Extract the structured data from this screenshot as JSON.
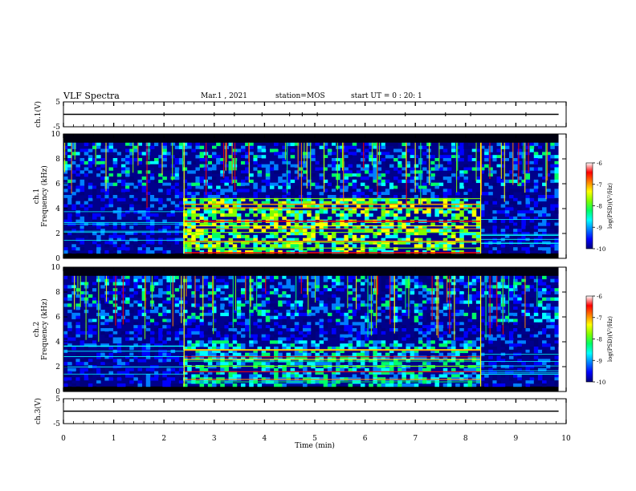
{
  "header": {
    "title": "VLF Spectra",
    "date": "Mar.1 , 2021",
    "station": "station=MOS",
    "start": "start UT =  0 : 20: 1"
  },
  "colors": {
    "spectrogram_colormap": [
      "#000000",
      "#00007a",
      "#0000ff",
      "#007fff",
      "#00ffff",
      "#00ff66",
      "#7fff00",
      "#ffff00",
      "#ff7f00",
      "#ff0000",
      "#ffffff"
    ],
    "axis": "#000000",
    "background": "#ffffff"
  },
  "chart_data": [
    {
      "type": "line",
      "panel": "ch1-waveform",
      "ylabel": "ch.1(V)",
      "ylim": [
        -5,
        5
      ],
      "y_ticks": [
        "5",
        "-5"
      ],
      "x": [
        0,
        10
      ],
      "values": [
        0,
        0
      ]
    },
    {
      "type": "heatmap",
      "panel": "ch1-spectrogram",
      "ylabel": "ch.1\nFrequency (kHz)",
      "ylim": [
        0,
        10
      ],
      "y_ticks": [
        "0",
        "2",
        "4",
        "6",
        "8",
        "10"
      ],
      "xlim": [
        0,
        10
      ],
      "colorbar": {
        "label": "log(PSD)(V²/Hz)",
        "range": [
          -10,
          -6
        ],
        "ticks": [
          "-6",
          "-7",
          "-8",
          "-9",
          "-10"
        ]
      },
      "segments": [
        {
          "t_start": 0,
          "t_end": 2.4,
          "level": "low"
        },
        {
          "t_start": 2.4,
          "t_end": 8.3,
          "level": "high",
          "band_top_khz": 4.8
        },
        {
          "t_start": 8.3,
          "t_end": 9.85,
          "level": "low"
        }
      ]
    },
    {
      "type": "heatmap",
      "panel": "ch2-spectrogram",
      "ylabel": "ch.2\nFrequency (kHz)",
      "ylim": [
        0,
        10
      ],
      "y_ticks": [
        "0",
        "2",
        "4",
        "6",
        "8",
        "10"
      ],
      "xlim": [
        0,
        10
      ],
      "colorbar": {
        "label": "log(PSD)(V²/Hz)",
        "range": [
          -10,
          -6
        ],
        "ticks": [
          "-6",
          "-7",
          "-8",
          "-9",
          "-10"
        ]
      },
      "segments": [
        {
          "t_start": 0,
          "t_end": 2.4,
          "level": "low"
        },
        {
          "t_start": 2.4,
          "t_end": 8.3,
          "level": "mid",
          "band_top_khz": 4.2
        },
        {
          "t_start": 8.3,
          "t_end": 9.85,
          "level": "low"
        }
      ]
    },
    {
      "type": "line",
      "panel": "ch3-waveform",
      "ylabel": "ch.3(V)",
      "ylim": [
        -5,
        5
      ],
      "y_ticks": [
        "5",
        "-5"
      ],
      "x": [
        0,
        10
      ],
      "values": [
        0,
        0
      ]
    }
  ],
  "x_axis": {
    "label": "Time (min)",
    "ticks": [
      "0",
      "1",
      "2",
      "3",
      "4",
      "5",
      "6",
      "7",
      "8",
      "9",
      "10"
    ]
  }
}
